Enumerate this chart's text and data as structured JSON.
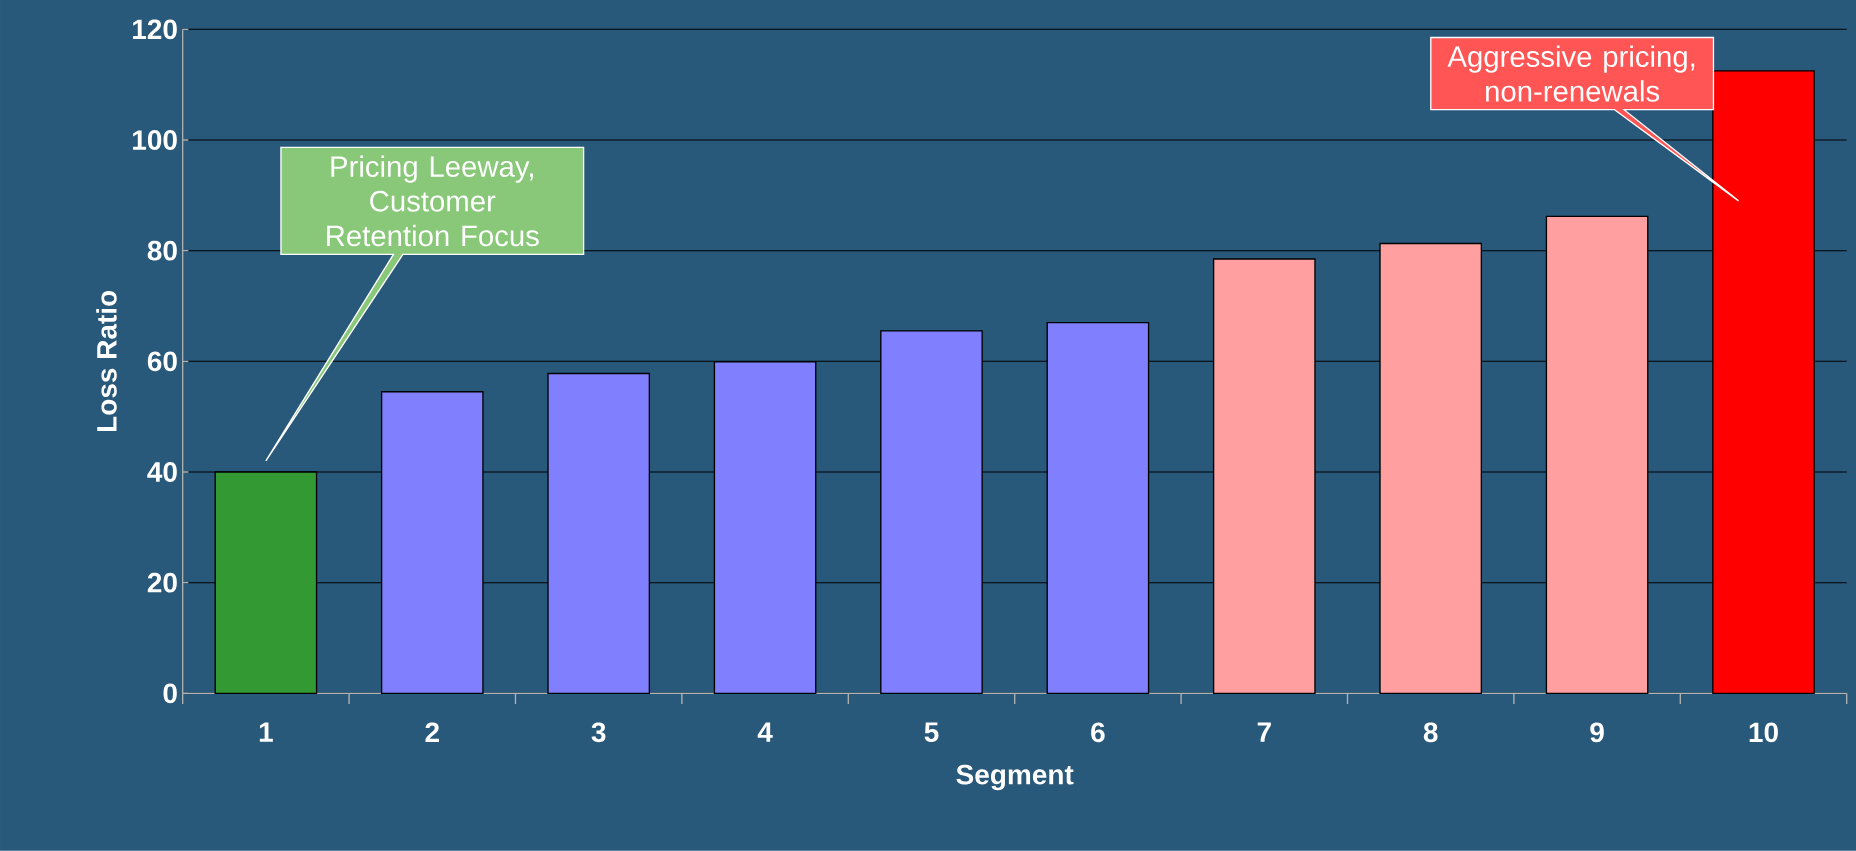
{
  "chart_data": {
    "type": "bar",
    "xlabel": "Segment",
    "ylabel": "Loss Ratio",
    "categories": [
      "1",
      "2",
      "3",
      "4",
      "5",
      "6",
      "7",
      "8",
      "9",
      "10"
    ],
    "values": [
      40,
      54.5,
      57.8,
      59.9,
      65.5,
      67,
      78.5,
      81.3,
      86.2,
      112.5
    ],
    "colors": [
      "#339933",
      "#8080ff",
      "#8080ff",
      "#8080ff",
      "#8080ff",
      "#8080ff",
      "#ff9f9f",
      "#ff9f9f",
      "#ff9f9f",
      "#ff0000"
    ],
    "ylim": [
      0,
      120
    ],
    "yticks": [
      0,
      20,
      40,
      60,
      80,
      100,
      120
    ],
    "grid": "y",
    "annotations": [
      "Pricing Leeway, Customer Retention Focus",
      "Aggressive pricing, non-renewals"
    ]
  }
}
